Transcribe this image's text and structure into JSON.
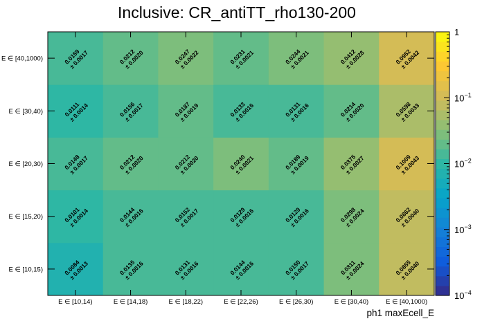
{
  "chart_data": {
    "type": "heatmap",
    "title": "Inclusive: CR_antiTT_rho130-200",
    "xlabel": "ph1 maxEcell_E",
    "ylabel": "",
    "x_categories": [
      "E ∈ [10,14)",
      "E ∈ [14,18)",
      "E ∈ [18,22)",
      "E ∈ [22,26)",
      "E ∈ [26,30)",
      "E ∈ [30,40)",
      "E ∈ [40,1000)"
    ],
    "y_categories": [
      "E ∈ [10,15)",
      "E ∈ [15,20)",
      "E ∈ [20,30)",
      "E ∈ [30,40)",
      "E ∈ [40,1000)"
    ],
    "values": [
      [
        "0.0084",
        "0.0135",
        "0.0131",
        "0.0144",
        "0.0150",
        "0.0311",
        "0.0855"
      ],
      [
        "0.0101",
        "0.0144",
        "0.0152",
        "0.0129",
        "0.0129",
        "0.0298",
        "0.0862"
      ],
      [
        "0.0148",
        "0.0212",
        "0.0212",
        "0.0240",
        "0.0189",
        "0.0375",
        "0.1009"
      ],
      [
        "0.0111",
        "0.0156",
        "0.0187",
        "0.0133",
        "0.0131",
        "0.0214",
        "0.0598"
      ],
      [
        "0.0159",
        "0.0212",
        "0.0247",
        "0.0231",
        "0.0244",
        "0.0412",
        "0.0952"
      ]
    ],
    "errors": [
      [
        "0.0013",
        "0.0016",
        "0.0016",
        "0.0016",
        "0.0017",
        "0.0024",
        "0.0040"
      ],
      [
        "0.0014",
        "0.0016",
        "0.0017",
        "0.0016",
        "0.0016",
        "0.0024",
        "0.0040"
      ],
      [
        "0.0017",
        "0.0020",
        "0.0020",
        "0.0021",
        "0.0019",
        "0.0027",
        "0.0043"
      ],
      [
        "0.0014",
        "0.0017",
        "0.0019",
        "0.0016",
        "0.0016",
        "0.0020",
        "0.0033"
      ],
      [
        "0.0017",
        "0.0020",
        "0.0022",
        "0.0021",
        "0.0021",
        "0.0028",
        "0.0042"
      ]
    ],
    "error_prefix": "± ",
    "z_scale": "log",
    "zlim": [
      0.0001,
      1
    ],
    "colorbar_ticks": [
      {
        "value": 1,
        "label": "1"
      },
      {
        "value": 0.1,
        "label": "10",
        "exp": "−1"
      },
      {
        "value": 0.01,
        "label": "10",
        "exp": "−2"
      },
      {
        "value": 0.001,
        "label": "10",
        "exp": "−3"
      },
      {
        "value": 0.0001,
        "label": "10",
        "exp": "−4"
      }
    ],
    "palette": [
      "#352a87",
      "#0f5cdd",
      "#1481d6",
      "#06a4ca",
      "#2eb7a4",
      "#87bf77",
      "#d1bb59",
      "#fec832",
      "#f9fb0e"
    ],
    "grid": false,
    "legend": "none"
  }
}
